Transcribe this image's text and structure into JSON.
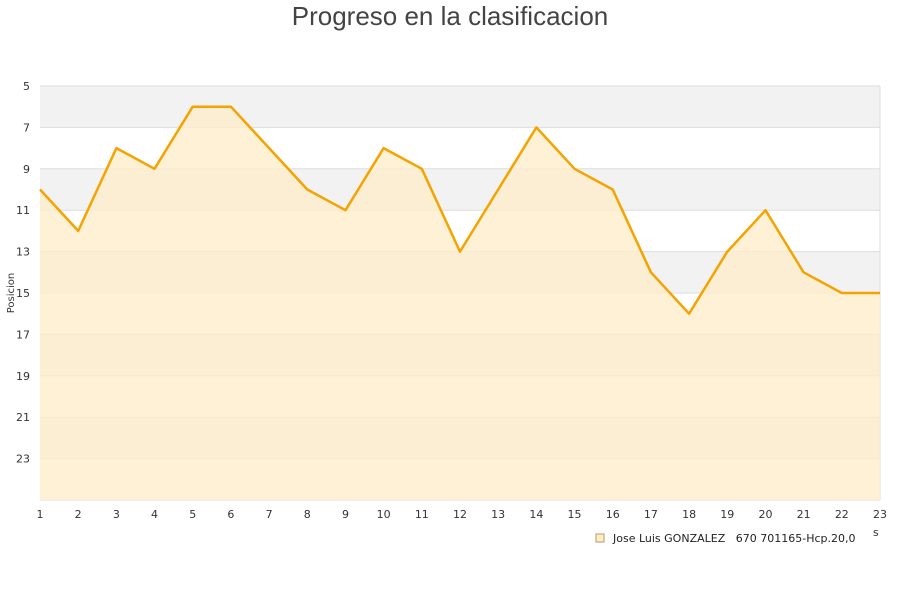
{
  "chart_data": {
    "type": "area",
    "title": "Progreso en la clasificacion",
    "ylabel": "Posicion",
    "xlabel": "",
    "x": [
      1,
      2,
      3,
      4,
      5,
      6,
      7,
      8,
      9,
      10,
      11,
      12,
      13,
      14,
      15,
      16,
      17,
      18,
      19,
      20,
      21,
      22,
      23
    ],
    "y_ticks": [
      5,
      7,
      9,
      11,
      13,
      15,
      17,
      19,
      21,
      23
    ],
    "ylim": [
      5,
      25
    ],
    "y_inverted": true,
    "grid": true,
    "series": [
      {
        "name": "Jose Luis GONZALEZ   670 701165-Hcp.20,0",
        "values": [
          10,
          12,
          8,
          9,
          6,
          6,
          8,
          10,
          11,
          8,
          9,
          13,
          10,
          7,
          9,
          10,
          14,
          16,
          13,
          11,
          14,
          15,
          15
        ],
        "line_color": "#f5a300",
        "fill_color": "#ffedc9"
      }
    ],
    "legend_position": "bottom-right",
    "band_colors": [
      "#f2f2f2",
      "#ffffff"
    ],
    "corner_mark": "s"
  }
}
